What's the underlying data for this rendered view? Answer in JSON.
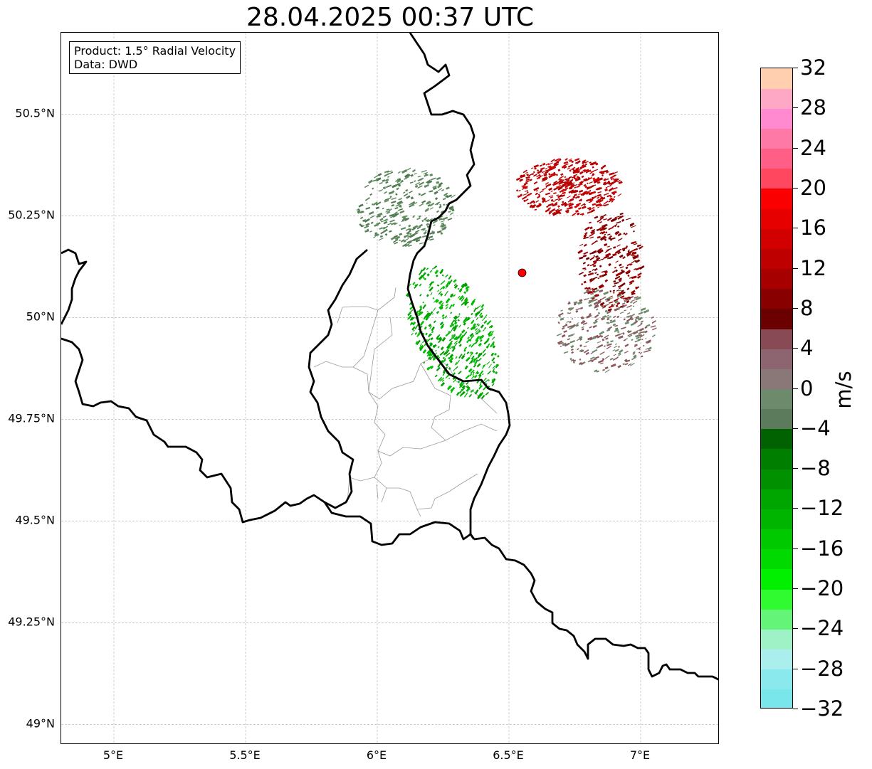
{
  "title": "28.04.2025 00:37 UTC",
  "info_box": {
    "line1": "Product: 1.5° Radial Velocity",
    "line2": "Data: DWD"
  },
  "map": {
    "lon_range": [
      4.8,
      7.3
    ],
    "lat_range": [
      48.95,
      50.7
    ],
    "lon_ticks": [
      "5°E",
      "5.5°E",
      "6°E",
      "6.5°E",
      "7°E"
    ],
    "lat_ticks": [
      "50.5°N",
      "50.25°N",
      "50°N",
      "49.75°N",
      "49.5°N",
      "49.25°N",
      "49°N"
    ],
    "gridlines": true,
    "radar_site": {
      "lon": 6.55,
      "lat": 50.11,
      "color": "#ff0000"
    },
    "echo_regions": [
      {
        "name": "outbound-north",
        "lon": 6.72,
        "lat": 50.32,
        "color": "#b30000"
      },
      {
        "name": "outbound-east",
        "lon": 6.88,
        "lat": 50.14,
        "color": "#9a0000"
      },
      {
        "name": "near-zero-east",
        "lon": 6.86,
        "lat": 49.97,
        "color": "#8a5a5e"
      },
      {
        "name": "inbound-northwest",
        "lon": 6.1,
        "lat": 50.27,
        "color": "#5e8a5e"
      },
      {
        "name": "inbound-southwest",
        "lon": 6.28,
        "lat": 49.96,
        "color": "#00a000"
      }
    ]
  },
  "colorbar": {
    "label": "m/s",
    "range": [
      -32,
      32
    ],
    "tick_labels": [
      "32",
      "28",
      "24",
      "20",
      "16",
      "12",
      "8",
      "4",
      "0",
      "−4",
      "−8",
      "−12",
      "−16",
      "−20",
      "−24",
      "−28",
      "−32"
    ],
    "colors_bottom_to_top": [
      "#78e6ea",
      "#8ae9ec",
      "#aaeeee",
      "#9ef2c6",
      "#64f478",
      "#30fb30",
      "#00f000",
      "#00da00",
      "#00c900",
      "#00b500",
      "#00a600",
      "#009000",
      "#007e00",
      "#006200",
      "#5c7a5c",
      "#6d8a6d",
      "#8a7878",
      "#8c6570",
      "#884a55",
      "#6a0000",
      "#880000",
      "#a60000",
      "#be0000",
      "#d20000",
      "#e60000",
      "#fa0000",
      "#ff4860",
      "#ff5e86",
      "#ff79a6",
      "#ff8ad0",
      "#ffa8c6",
      "#ffcfb0"
    ]
  }
}
